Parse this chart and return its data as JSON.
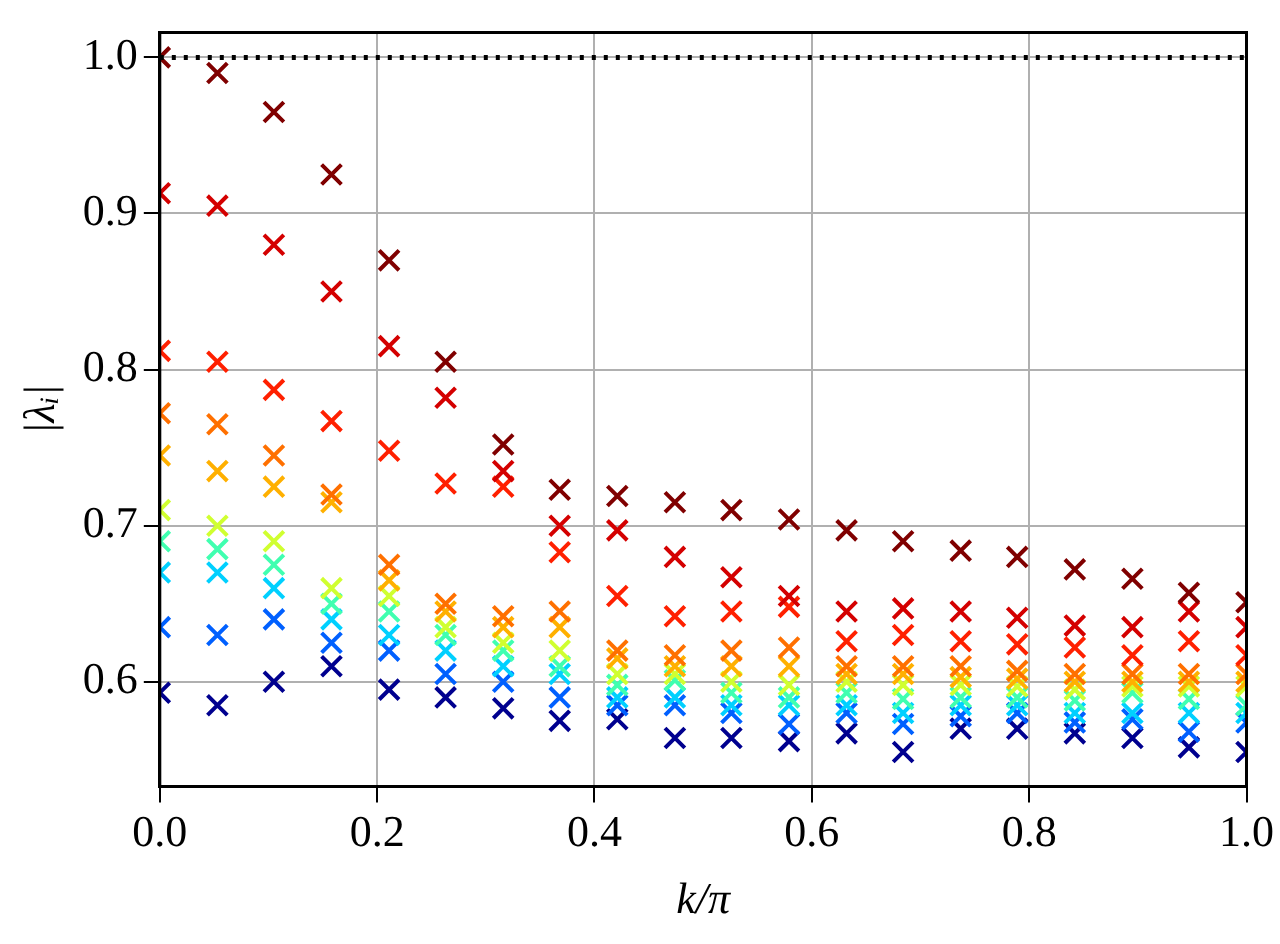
{
  "chart_data": {
    "type": "scatter",
    "xlabel": "k/π",
    "ylabel": "|λᵢ|",
    "x": [
      0,
      0.053,
      0.105,
      0.158,
      0.211,
      0.263,
      0.316,
      0.368,
      0.421,
      0.474,
      0.526,
      0.579,
      0.632,
      0.684,
      0.737,
      0.789,
      0.842,
      0.895,
      0.947,
      1.0
    ],
    "series": [
      {
        "color": "#800000",
        "values": [
          1.0,
          0.99,
          0.965,
          0.925,
          0.87,
          0.805,
          0.752,
          0.723,
          0.719,
          0.715,
          0.71,
          0.704,
          0.697,
          0.69,
          0.684,
          0.68,
          0.672,
          0.666,
          0.657,
          0.651
        ]
      },
      {
        "color": "#d40000",
        "values": [
          0.913,
          0.905,
          0.88,
          0.85,
          0.815,
          0.782,
          0.735,
          0.7,
          0.697,
          0.68,
          0.667,
          0.655,
          0.645,
          0.647,
          0.645,
          0.641,
          0.636,
          0.635,
          0.645,
          0.635
        ]
      },
      {
        "color": "#ff2000",
        "values": [
          0.812,
          0.805,
          0.787,
          0.767,
          0.748,
          0.727,
          0.725,
          0.683,
          0.655,
          0.642,
          0.645,
          0.648,
          0.626,
          0.63,
          0.626,
          0.624,
          0.622,
          0.617,
          0.626,
          0.617
        ]
      },
      {
        "color": "#ff7000",
        "values": [
          0.772,
          0.765,
          0.745,
          0.72,
          0.675,
          0.65,
          0.642,
          0.645,
          0.62,
          0.617,
          0.62,
          0.622,
          0.61,
          0.61,
          0.61,
          0.607,
          0.605,
          0.605,
          0.605,
          0.605
        ]
      },
      {
        "color": "#ffb000",
        "values": [
          0.745,
          0.735,
          0.725,
          0.715,
          0.665,
          0.645,
          0.635,
          0.635,
          0.615,
          0.61,
          0.61,
          0.61,
          0.605,
          0.605,
          0.603,
          0.602,
          0.6,
          0.6,
          0.6,
          0.6
        ]
      },
      {
        "color": "#d0ff30",
        "values": [
          0.71,
          0.7,
          0.69,
          0.66,
          0.655,
          0.635,
          0.625,
          0.62,
          0.605,
          0.605,
          0.6,
          0.598,
          0.6,
          0.598,
          0.598,
          0.597,
          0.595,
          0.597,
          0.597,
          0.597
        ]
      },
      {
        "color": "#40ffb0",
        "values": [
          0.69,
          0.685,
          0.675,
          0.65,
          0.645,
          0.63,
          0.62,
          0.61,
          0.598,
          0.601,
          0.593,
          0.59,
          0.593,
          0.589,
          0.59,
          0.59,
          0.588,
          0.593,
          0.589,
          0.585
        ]
      },
      {
        "color": "#00d0ff",
        "values": [
          0.67,
          0.67,
          0.66,
          0.64,
          0.63,
          0.62,
          0.61,
          0.605,
          0.59,
          0.59,
          0.585,
          0.585,
          0.585,
          0.58,
          0.585,
          0.585,
          0.58,
          0.58,
          0.58,
          0.58
        ]
      },
      {
        "color": "#0060ff",
        "values": [
          0.635,
          0.63,
          0.64,
          0.625,
          0.62,
          0.605,
          0.6,
          0.59,
          0.585,
          0.585,
          0.58,
          0.573,
          0.58,
          0.573,
          0.578,
          0.58,
          0.574,
          0.576,
          0.568,
          0.574
        ]
      },
      {
        "color": "#00008f",
        "values": [
          0.593,
          0.585,
          0.6,
          0.61,
          0.595,
          0.59,
          0.583,
          0.575,
          0.576,
          0.564,
          0.564,
          0.562,
          0.567,
          0.555,
          0.57,
          0.57,
          0.567,
          0.564,
          0.558,
          0.555
        ]
      }
    ],
    "xlim": [
      0,
      1
    ],
    "ylim": [
      0.533,
      1.016
    ],
    "xticks": [
      {
        "value": 0,
        "label": "0.0"
      },
      0.2,
      0.4,
      0.6,
      0.8,
      {
        "value": 1,
        "label": "1.0"
      }
    ],
    "yticks": [
      0.6,
      0.7,
      0.8,
      0.9,
      {
        "value": 1,
        "label": "1.0"
      }
    ],
    "ref_lines": [
      {
        "axis": "y",
        "value": 1,
        "color": "#000000",
        "line_style": "dotted"
      }
    ],
    "grid": true,
    "legend": false,
    "marker": "cross"
  }
}
